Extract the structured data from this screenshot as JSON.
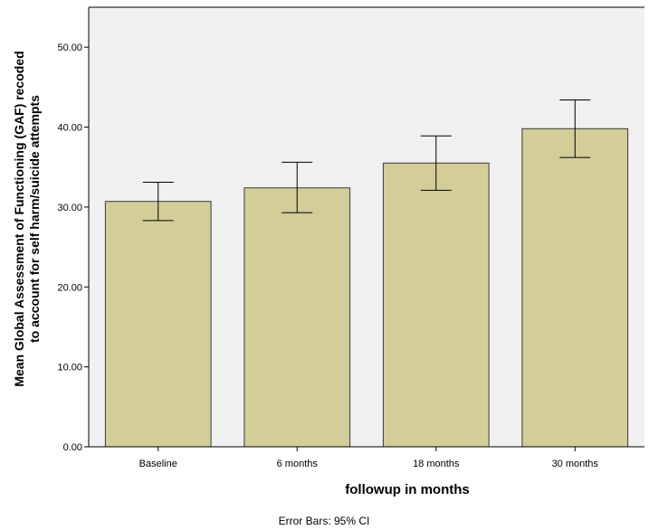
{
  "chart_data": {
    "type": "bar",
    "categories": [
      "Baseline",
      "6 months",
      "18 months",
      "30 months"
    ],
    "values": [
      30.7,
      32.4,
      35.5,
      39.8
    ],
    "error_bars": {
      "type": "95% CI",
      "lower": [
        28.3,
        29.3,
        32.1,
        36.2
      ],
      "upper": [
        33.1,
        35.6,
        38.9,
        43.4
      ]
    },
    "xlabel": "followup in months",
    "ylabel": "Mean Global Assessment of Functioning (GAF) recoded",
    "ylabel_line2": "to account for self harm/suicide attempts",
    "ylim": [
      0,
      55
    ],
    "yticks": [
      0,
      10,
      20,
      30,
      40,
      50
    ],
    "ytick_labels": [
      "0.00",
      "10.00",
      "20.00",
      "30.00",
      "40.00",
      "50.00"
    ],
    "footnote": "Error Bars: 95% CI",
    "grid": false,
    "legend": "none",
    "colors": {
      "plot_background": "#f0f0f0",
      "bar_fill": "#d3cd98",
      "bar_stroke": "#3a3a3a",
      "axis": "#000000",
      "error_bar": "#000000"
    }
  }
}
